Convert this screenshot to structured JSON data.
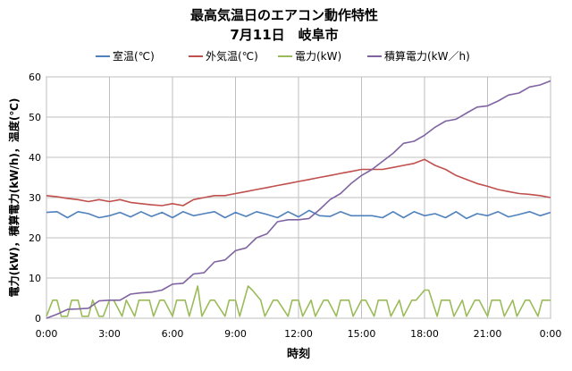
{
  "chart_data": {
    "type": "line",
    "title": "最高気温日のエアコン動作特性",
    "subtitle": "7月11日　岐阜市",
    "xlabel": "時刻",
    "ylabel": "電力(kW)，積算電力(kW/h)，温度(℃)",
    "x_ticks": [
      "0:00",
      "3:00",
      "6:00",
      "9:00",
      "12:00",
      "15:00",
      "18:00",
      "21:00",
      "0:00"
    ],
    "y_ticks": [
      "0",
      "10",
      "20",
      "30",
      "40",
      "50",
      "60"
    ],
    "xlim": [
      0,
      24
    ],
    "ylim": [
      0,
      60
    ],
    "grid": true,
    "legend_position": "top",
    "series": [
      {
        "name": "室温(℃)",
        "color": "#4F81BD",
        "x": [
          0,
          0.5,
          1,
          1.5,
          2,
          2.5,
          3,
          3.5,
          4,
          4.5,
          5,
          5.5,
          6,
          6.5,
          7,
          7.5,
          8,
          8.5,
          9,
          9.5,
          10,
          10.5,
          11,
          11.5,
          12,
          12.5,
          13,
          13.5,
          14,
          14.5,
          15,
          15.5,
          16,
          16.5,
          17,
          17.5,
          18,
          18.5,
          19,
          19.5,
          20,
          20.5,
          21,
          21.5,
          22,
          22.5,
          23,
          23.5,
          24
        ],
        "values": [
          26.3,
          26.5,
          25.0,
          26.5,
          26.0,
          25.0,
          25.5,
          26.3,
          25.2,
          26.5,
          25.3,
          26.3,
          25.0,
          26.5,
          25.5,
          26.0,
          26.5,
          25.0,
          26.3,
          25.3,
          26.5,
          25.8,
          25.0,
          26.5,
          25.2,
          26.8,
          25.5,
          25.3,
          26.5,
          25.5,
          25.5,
          25.5,
          25.0,
          26.5,
          25.0,
          26.5,
          25.5,
          26.0,
          25.0,
          26.5,
          24.8,
          26.0,
          25.5,
          26.5,
          25.2,
          25.8,
          26.5,
          25.5,
          26.3
        ]
      },
      {
        "name": "外気温(℃)",
        "color": "#C0504D",
        "x": [
          0,
          0.5,
          1,
          1.5,
          2,
          2.5,
          3,
          3.5,
          4,
          4.5,
          5,
          5.5,
          6,
          6.5,
          7,
          7.5,
          8,
          8.5,
          9,
          9.5,
          10,
          10.5,
          11,
          11.5,
          12,
          12.5,
          13,
          13.5,
          14,
          14.5,
          15,
          15.5,
          16,
          16.5,
          17,
          17.5,
          18,
          18.5,
          19,
          19.5,
          20,
          20.5,
          21,
          21.5,
          22,
          22.5,
          23,
          23.5,
          24
        ],
        "values": [
          30.5,
          30.2,
          29.8,
          29.5,
          29.0,
          29.5,
          29.0,
          29.5,
          28.8,
          28.5,
          28.2,
          28.0,
          28.5,
          28.0,
          29.5,
          30.0,
          30.5,
          30.5,
          31.0,
          31.5,
          32.0,
          32.5,
          33.0,
          33.5,
          34.0,
          34.5,
          35.0,
          35.5,
          36.0,
          36.5,
          37.0,
          37.0,
          37.0,
          37.5,
          38.0,
          38.5,
          39.5,
          38.0,
          37.0,
          35.5,
          34.5,
          33.5,
          32.8,
          32.0,
          31.5,
          31.0,
          30.8,
          30.5,
          30.0
        ]
      },
      {
        "name": "電力(kW)",
        "color": "#9BBB59",
        "x": [
          0,
          0.3,
          0.5,
          0.7,
          1.0,
          1.2,
          1.5,
          1.7,
          2.0,
          2.2,
          2.5,
          2.7,
          3.0,
          3.2,
          3.6,
          3.8,
          4.2,
          4.4,
          4.9,
          5.1,
          5.4,
          5.6,
          6.0,
          6.2,
          6.6,
          6.8,
          7.2,
          7.4,
          7.8,
          8.0,
          8.5,
          8.7,
          9.0,
          9.2,
          9.6,
          9.8,
          10.2,
          10.4,
          10.8,
          11.0,
          11.5,
          11.7,
          12.0,
          12.2,
          12.6,
          12.8,
          13.2,
          13.4,
          13.8,
          14.0,
          14.4,
          14.6,
          15.0,
          15.2,
          15.6,
          15.8,
          16.2,
          16.4,
          16.8,
          17.0,
          17.4,
          17.6,
          18.0,
          18.2,
          18.6,
          18.8,
          19.2,
          19.4,
          19.8,
          20.0,
          20.4,
          20.6,
          21.0,
          21.2,
          21.6,
          21.8,
          22.2,
          22.4,
          22.8,
          23.0,
          23.4,
          23.6,
          24.0
        ],
        "values": [
          0.5,
          4.5,
          4.5,
          0.5,
          0.5,
          4.5,
          4.5,
          0.5,
          0.5,
          4.5,
          0.5,
          0.5,
          4.5,
          4.5,
          0.5,
          4.5,
          0.5,
          4.5,
          4.5,
          0.5,
          4.5,
          4.5,
          0.5,
          4.5,
          4.5,
          0.5,
          8.0,
          0.5,
          4.5,
          4.5,
          0.5,
          4.5,
          4.5,
          0.5,
          8.0,
          7.0,
          4.5,
          0.5,
          4.5,
          4.5,
          0.5,
          4.5,
          4.5,
          0.5,
          4.5,
          0.5,
          4.5,
          4.5,
          0.5,
          4.5,
          4.5,
          0.5,
          4.5,
          4.5,
          0.5,
          4.5,
          4.5,
          0.5,
          4.5,
          0.5,
          4.5,
          4.5,
          7.0,
          7.0,
          0.5,
          4.5,
          4.5,
          0.5,
          4.5,
          0.5,
          4.5,
          4.5,
          0.5,
          4.5,
          4.5,
          0.5,
          4.5,
          0.5,
          4.5,
          4.5,
          0.5,
          4.5,
          4.5
        ]
      },
      {
        "name": "積算電力(kW／h)",
        "color": "#8064A2",
        "x": [
          0,
          0.5,
          1,
          1.5,
          2,
          2.5,
          3,
          3.5,
          4,
          4.5,
          5,
          5.5,
          6,
          6.5,
          7,
          7.5,
          8,
          8.5,
          9,
          9.5,
          10,
          10.5,
          11,
          11.5,
          12,
          12.5,
          13,
          13.5,
          14,
          14.5,
          15,
          15.5,
          16,
          16.5,
          17,
          17.5,
          18,
          18.5,
          19,
          19.5,
          20,
          20.5,
          21,
          21.5,
          22,
          22.5,
          23,
          23.5,
          24
        ],
        "values": [
          0.0,
          1.0,
          2.2,
          2.3,
          2.5,
          4.3,
          4.5,
          4.5,
          6.0,
          6.3,
          6.5,
          7.0,
          8.5,
          8.7,
          11.0,
          11.3,
          14.0,
          14.5,
          16.8,
          17.5,
          20.0,
          21.0,
          24.0,
          24.5,
          24.5,
          24.8,
          27.0,
          29.5,
          31.0,
          33.5,
          35.5,
          37.0,
          39.0,
          41.0,
          43.5,
          44.0,
          45.5,
          47.5,
          49.0,
          49.5,
          51.0,
          52.5,
          52.8,
          54.0,
          55.5,
          56.0,
          57.5,
          58.0,
          59.0
        ]
      }
    ]
  }
}
